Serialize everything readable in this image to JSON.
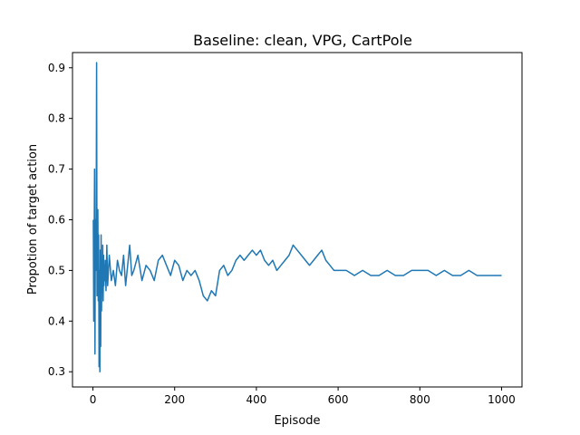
{
  "chart_data": {
    "type": "line",
    "title": "Baseline: clean, VPG, CartPole",
    "xlabel": "Episode",
    "ylabel": "Propotion of target action",
    "xlim": [
      -50,
      1050
    ],
    "ylim": [
      0.27,
      0.93
    ],
    "x_ticks": [
      0,
      200,
      400,
      600,
      800,
      1000
    ],
    "x_tick_labels": [
      "0",
      "200",
      "400",
      "600",
      "800",
      "1000"
    ],
    "y_ticks": [
      0.3,
      0.4,
      0.5,
      0.6,
      0.7,
      0.8,
      0.9
    ],
    "y_tick_labels": [
      "0.3",
      "0.4",
      "0.5",
      "0.6",
      "0.7",
      "0.8",
      "0.9"
    ],
    "grid": false,
    "line_color": "#1f77b4",
    "series": [
      {
        "x": [
          1,
          2,
          3,
          4,
          5,
          6,
          7,
          8,
          9,
          10,
          11,
          12,
          13,
          14,
          15,
          16,
          17,
          18,
          19,
          20,
          21,
          22,
          23,
          24,
          25,
          26,
          27,
          28,
          29,
          30,
          32,
          34,
          36,
          38,
          40,
          45,
          50,
          55,
          60,
          65,
          70,
          75,
          80,
          85,
          90,
          95,
          100,
          110,
          120,
          130,
          140,
          150,
          160,
          170,
          180,
          190,
          200,
          210,
          220,
          230,
          240,
          250,
          260,
          270,
          280,
          290,
          300,
          310,
          320,
          330,
          340,
          350,
          360,
          370,
          380,
          390,
          400,
          410,
          420,
          430,
          440,
          450,
          460,
          470,
          480,
          490,
          500,
          510,
          520,
          530,
          540,
          550,
          560,
          570,
          580,
          590,
          600,
          620,
          640,
          660,
          680,
          700,
          720,
          740,
          760,
          780,
          800,
          820,
          840,
          860,
          880,
          900,
          920,
          940,
          960,
          980,
          1000
        ],
        "values": [
          0.6,
          0.4,
          0.55,
          0.7,
          0.335,
          0.6,
          0.5,
          0.6,
          0.91,
          0.45,
          0.52,
          0.62,
          0.44,
          0.57,
          0.31,
          0.5,
          0.3,
          0.54,
          0.35,
          0.57,
          0.42,
          0.5,
          0.46,
          0.55,
          0.44,
          0.53,
          0.47,
          0.51,
          0.48,
          0.52,
          0.46,
          0.55,
          0.47,
          0.5,
          0.53,
          0.48,
          0.5,
          0.47,
          0.52,
          0.5,
          0.49,
          0.53,
          0.47,
          0.51,
          0.55,
          0.49,
          0.5,
          0.53,
          0.48,
          0.51,
          0.5,
          0.48,
          0.52,
          0.53,
          0.51,
          0.49,
          0.52,
          0.51,
          0.48,
          0.5,
          0.49,
          0.5,
          0.48,
          0.45,
          0.44,
          0.46,
          0.45,
          0.5,
          0.51,
          0.49,
          0.5,
          0.52,
          0.53,
          0.52,
          0.53,
          0.54,
          0.53,
          0.54,
          0.52,
          0.51,
          0.52,
          0.5,
          0.51,
          0.52,
          0.53,
          0.55,
          0.54,
          0.53,
          0.52,
          0.51,
          0.52,
          0.53,
          0.54,
          0.52,
          0.51,
          0.5,
          0.5,
          0.5,
          0.49,
          0.5,
          0.49,
          0.49,
          0.5,
          0.49,
          0.49,
          0.5,
          0.5,
          0.5,
          0.49,
          0.5,
          0.49,
          0.49,
          0.5,
          0.49,
          0.49,
          0.49,
          0.49
        ]
      }
    ]
  }
}
